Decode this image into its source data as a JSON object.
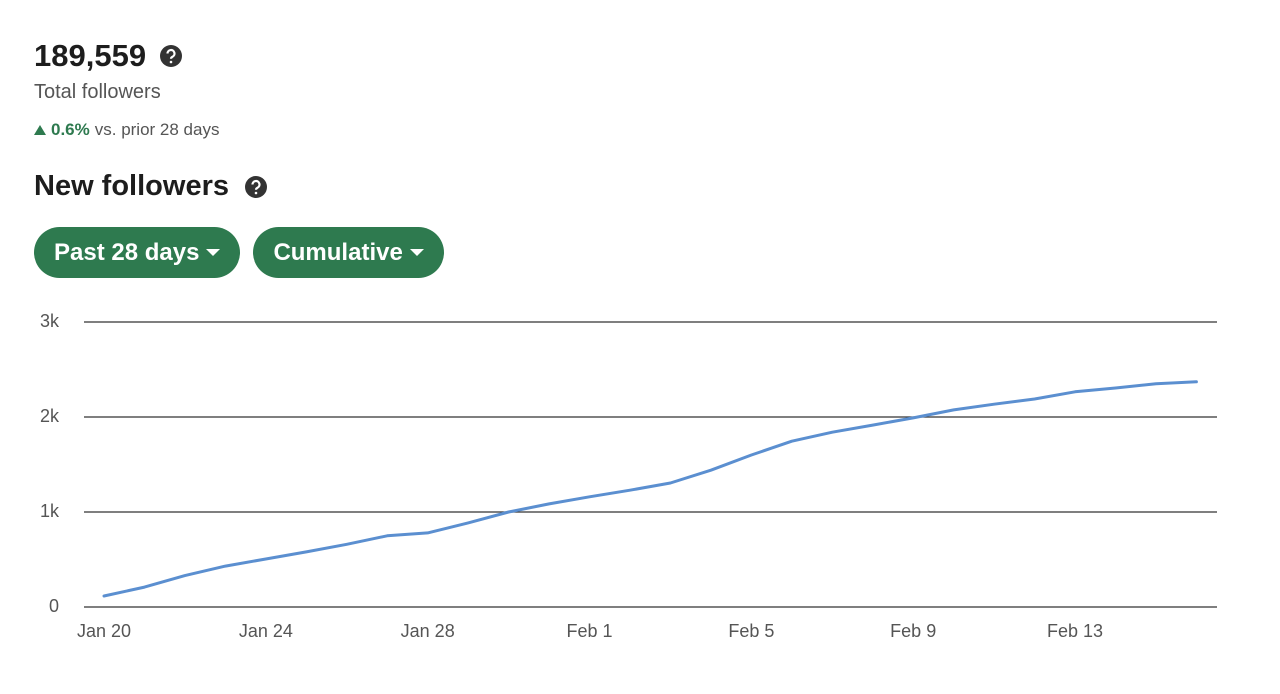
{
  "header": {
    "total": "189,559",
    "total_label": "Total followers",
    "change": "0.6%",
    "change_label": "vs. prior 28 days",
    "section_title": "New followers",
    "buttons": [
      "Past 28 days",
      "Cumulative"
    ]
  },
  "chart_data": {
    "type": "line",
    "categories": [
      "Jan 20",
      null,
      null,
      null,
      "Jan 24",
      null,
      null,
      null,
      "Jan 28",
      null,
      null,
      null,
      "Feb 1",
      null,
      null,
      null,
      "Feb 5",
      null,
      null,
      null,
      "Feb 9",
      null,
      null,
      null,
      "Feb 13",
      null,
      null,
      null
    ],
    "values": [
      116,
      210,
      330,
      430,
      505,
      580,
      660,
      750,
      780,
      885,
      1000,
      1085,
      1160,
      1230,
      1305,
      1440,
      1600,
      1745,
      1840,
      1915,
      1990,
      2075,
      2135,
      2190,
      2265,
      2305,
      2350,
      2370
    ],
    "color": "#5b8fd0",
    "ylim": [
      0,
      3000
    ],
    "yticks": [
      0,
      {
        "value": 1000,
        "label": "1k"
      },
      {
        "value": 2000,
        "label": "2k"
      },
      {
        "value": 3000,
        "label": "3k"
      }
    ],
    "grid": true
  }
}
